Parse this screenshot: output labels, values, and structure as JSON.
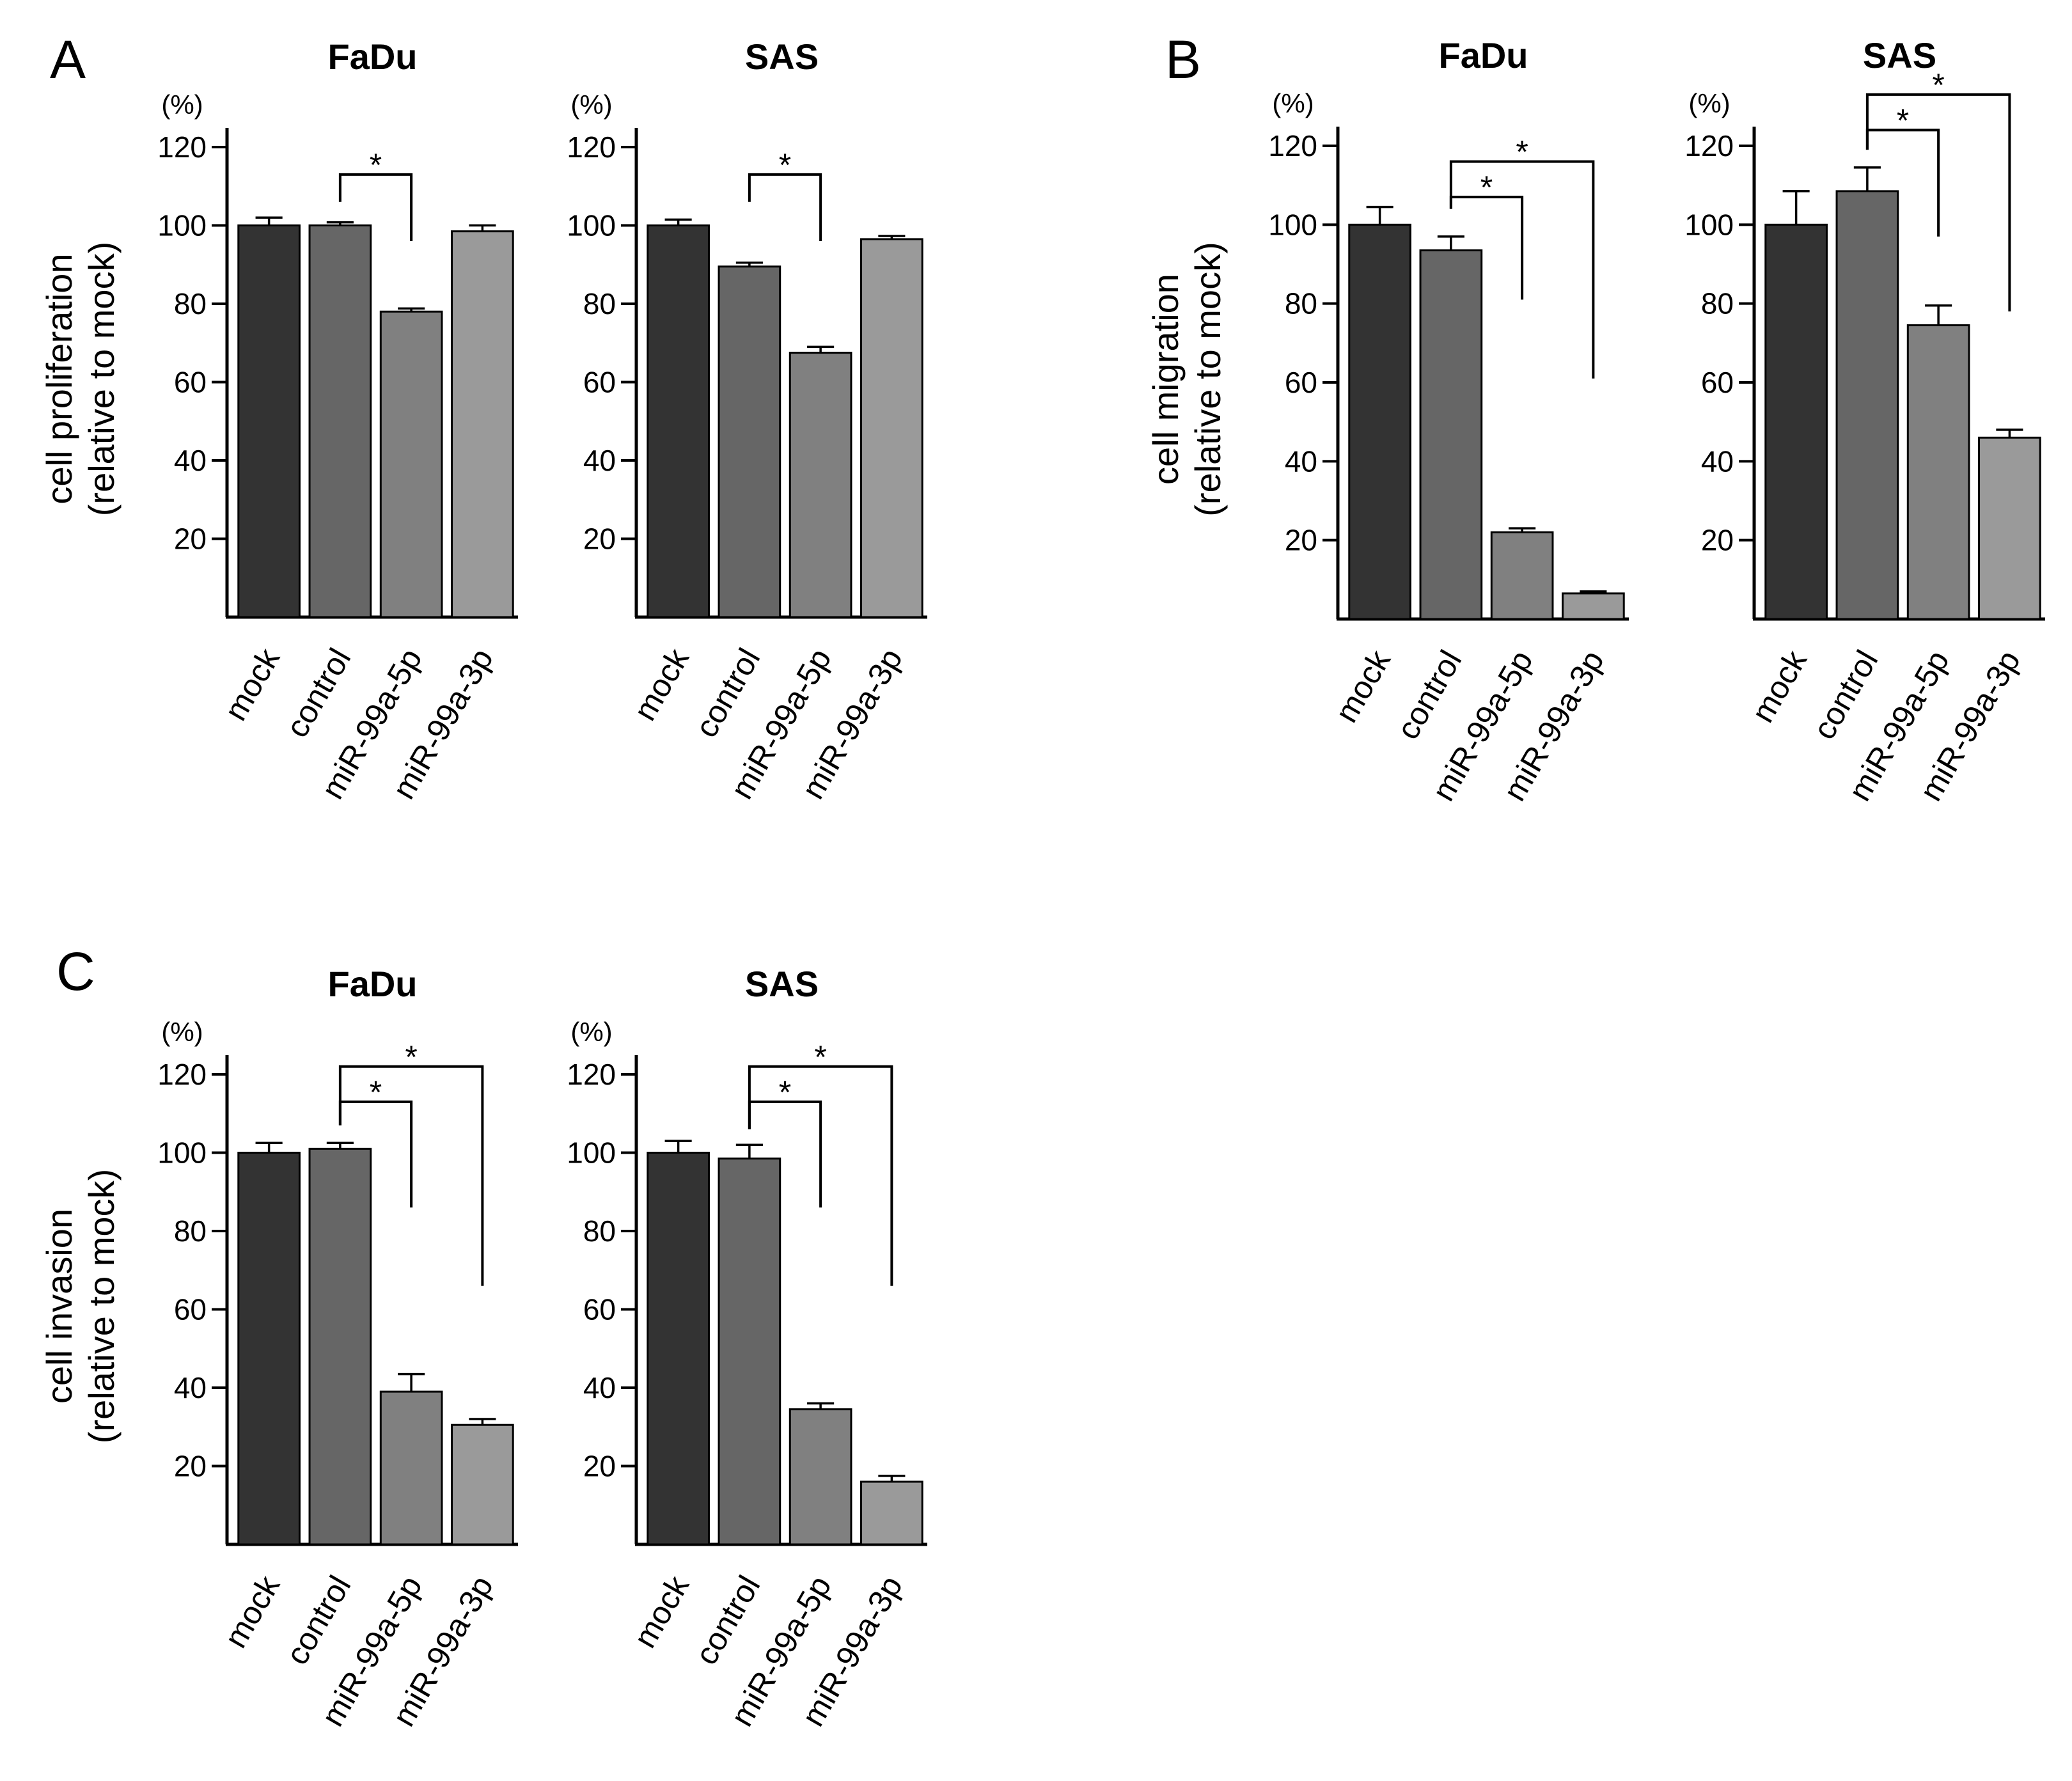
{
  "panel_labels": [
    "A",
    "B",
    "C"
  ],
  "chart_data": [
    {
      "panel": "A",
      "type": "bar",
      "title": "FaDu",
      "ylabel": [
        "cell proliferation",
        "(relative to mock)"
      ],
      "unit": "(%)",
      "categories": [
        "mock",
        "control",
        "miR-99a-5p",
        "miR-99a-3p"
      ],
      "values": [
        100,
        100,
        78,
        98.5
      ],
      "errors": [
        2,
        0.8,
        0.8,
        1.5
      ],
      "colors": [
        "#333333",
        "#666666",
        "#808080",
        "#9a9a9a"
      ],
      "ylim": [
        0,
        120
      ],
      "yticks": [
        20,
        40,
        60,
        80,
        100,
        120
      ],
      "significance": [
        {
          "from": 1,
          "to": 2,
          "label": "*",
          "level": 113,
          "drop_left": 106,
          "drop_right": 96
        }
      ]
    },
    {
      "panel": "A",
      "type": "bar",
      "title": "SAS",
      "ylabel": [],
      "unit": "(%)",
      "categories": [
        "mock",
        "control",
        "miR-99a-5p",
        "miR-99a-3p"
      ],
      "values": [
        100,
        89.5,
        67.5,
        96.5
      ],
      "errors": [
        1.5,
        1,
        1.5,
        0.8
      ],
      "colors": [
        "#333333",
        "#666666",
        "#808080",
        "#9a9a9a"
      ],
      "ylim": [
        0,
        120
      ],
      "yticks": [
        20,
        40,
        60,
        80,
        100,
        120
      ],
      "significance": [
        {
          "from": 1,
          "to": 2,
          "label": "*",
          "level": 113,
          "drop_left": 106,
          "drop_right": 96
        }
      ]
    },
    {
      "panel": "B",
      "type": "bar",
      "title": "FaDu",
      "ylabel": [
        "cell migration",
        "(relative to mock)"
      ],
      "unit": "(%)",
      "categories": [
        "mock",
        "control",
        "miR-99a-5p",
        "miR-99a-3p"
      ],
      "values": [
        100,
        93.5,
        22,
        6.5
      ],
      "errors": [
        4.5,
        3.5,
        1,
        0.5
      ],
      "colors": [
        "#333333",
        "#666666",
        "#808080",
        "#9a9a9a"
      ],
      "ylim": [
        0,
        120
      ],
      "yticks": [
        20,
        40,
        60,
        80,
        100,
        120
      ],
      "significance": [
        {
          "from": 1,
          "to": 2,
          "label": "*",
          "level": 107,
          "drop_left": 104,
          "drop_right": 81
        },
        {
          "from": 1,
          "to": 3,
          "label": "*",
          "level": 116,
          "drop_left": 104,
          "drop_right": 61
        }
      ]
    },
    {
      "panel": "B",
      "type": "bar",
      "title": "SAS",
      "ylabel": [],
      "unit": "(%)",
      "categories": [
        "mock",
        "control",
        "miR-99a-5p",
        "miR-99a-3p"
      ],
      "values": [
        100,
        108.5,
        74.5,
        46
      ],
      "errors": [
        8.5,
        6,
        5,
        2
      ],
      "colors": [
        "#333333",
        "#666666",
        "#808080",
        "#9a9a9a"
      ],
      "ylim": [
        0,
        120
      ],
      "yticks": [
        20,
        40,
        60,
        80,
        100,
        120
      ],
      "significance": [
        {
          "from": 1,
          "to": 2,
          "label": "*",
          "level": 124,
          "drop_left": 119,
          "drop_right": 97
        },
        {
          "from": 1,
          "to": 3,
          "label": "*",
          "level": 133,
          "drop_left": 119,
          "drop_right": 78
        }
      ]
    },
    {
      "panel": "C",
      "type": "bar",
      "title": "FaDu",
      "ylabel": [
        "cell invasion",
        "(relative to mock)"
      ],
      "unit": "(%)",
      "categories": [
        "mock",
        "control",
        "miR-99a-5p",
        "miR-99a-3p"
      ],
      "values": [
        100,
        101,
        39,
        30.5
      ],
      "errors": [
        2.5,
        1.5,
        4.5,
        1.5
      ],
      "colors": [
        "#333333",
        "#666666",
        "#808080",
        "#9a9a9a"
      ],
      "ylim": [
        0,
        120
      ],
      "yticks": [
        20,
        40,
        60,
        80,
        100,
        120
      ],
      "significance": [
        {
          "from": 1,
          "to": 2,
          "label": "*",
          "level": 113,
          "drop_left": 107,
          "drop_right": 86
        },
        {
          "from": 1,
          "to": 3,
          "label": "*",
          "level": 122,
          "drop_left": 107,
          "drop_right": 66
        }
      ]
    },
    {
      "panel": "C",
      "type": "bar",
      "title": "SAS",
      "ylabel": [],
      "unit": "(%)",
      "categories": [
        "mock",
        "control",
        "miR-99a-5p",
        "miR-99a-3p"
      ],
      "values": [
        100,
        98.5,
        34.5,
        16
      ],
      "errors": [
        3,
        3.5,
        1.5,
        1.5
      ],
      "colors": [
        "#333333",
        "#666666",
        "#808080",
        "#9a9a9a"
      ],
      "ylim": [
        0,
        120
      ],
      "yticks": [
        20,
        40,
        60,
        80,
        100,
        120
      ],
      "significance": [
        {
          "from": 1,
          "to": 2,
          "label": "*",
          "level": 113,
          "drop_left": 106,
          "drop_right": 86
        },
        {
          "from": 1,
          "to": 3,
          "label": "*",
          "level": 122,
          "drop_left": 106,
          "drop_right": 66
        }
      ]
    }
  ]
}
